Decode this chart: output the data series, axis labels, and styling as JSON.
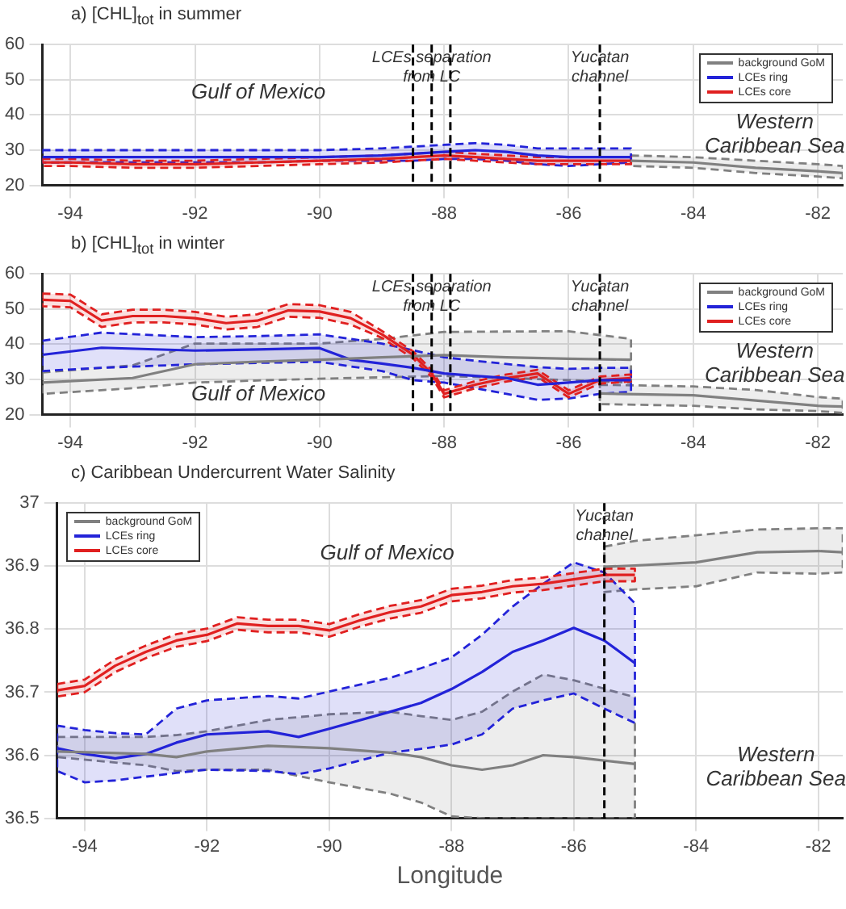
{
  "chart_data": [
    {
      "type": "line",
      "title": "a)  [CHL]$_{tot}$ in summer",
      "xlim": [
        -94.45,
        -81.6
      ],
      "xticks": [
        -94,
        -92,
        -90,
        -88,
        -86,
        -84,
        -82
      ],
      "ylim": [
        20,
        60
      ],
      "yticks": [
        20,
        30,
        40,
        50,
        60
      ],
      "grid": true,
      "legend": "top right",
      "marker": "none",
      "line_style": "solid",
      "ref_lines": [
        {
          "axis": "x",
          "value": -88.5,
          "label": null,
          "line_style": "dashed",
          "color": "#000000"
        },
        {
          "axis": "x",
          "value": -88.2,
          "label": "LCEs separation from LC",
          "line_style": "dashed",
          "color": "#000000"
        },
        {
          "axis": "x",
          "value": -87.9,
          "label": null,
          "line_style": "dashed",
          "color": "#000000"
        },
        {
          "axis": "x",
          "value": -85.5,
          "label": "Yucatan channel",
          "line_style": "dashed",
          "color": "#000000"
        }
      ],
      "annotations": [
        "Gulf of Mexico",
        "Western Caribbean Sea"
      ],
      "series": [
        {
          "name": "background GoM",
          "color": "#808080",
          "x": [
            -85,
            -84,
            -83,
            -82,
            -81.6
          ],
          "values": [
            27,
            26.5,
            25,
            24,
            23.5
          ],
          "lower": [
            25.5,
            25,
            23.5,
            22.5,
            22
          ],
          "upper": [
            28.5,
            28,
            27,
            26,
            25.5
          ]
        },
        {
          "name": "LCEs ring",
          "color": "#2323d8",
          "x": [
            -94.45,
            -94,
            -93,
            -92,
            -91,
            -90,
            -89,
            -88.5,
            -88,
            -87.5,
            -87,
            -86.5,
            -86,
            -85.5,
            -85
          ],
          "values": [
            28,
            28,
            28,
            28,
            28,
            28,
            28.5,
            29,
            29.5,
            30,
            29.5,
            28.5,
            28,
            28,
            28
          ],
          "lower": [
            26.5,
            26.5,
            26.5,
            26.5,
            26.5,
            27,
            27,
            27,
            27.5,
            27.5,
            27,
            26,
            25.5,
            26,
            26.5
          ],
          "upper": [
            30,
            30,
            30,
            30,
            30,
            30,
            30.5,
            31,
            31.5,
            32,
            31.5,
            30.5,
            30.5,
            30.5,
            30.5
          ]
        },
        {
          "name": "LCEs core",
          "color": "#e02020",
          "x": [
            -94.45,
            -94,
            -93,
            -92,
            -91,
            -90,
            -89,
            -88.5,
            -88,
            -87.5,
            -87,
            -86.5,
            -86,
            -85.5,
            -85
          ],
          "values": [
            26.5,
            26.5,
            26,
            26,
            26.5,
            27,
            27.5,
            28,
            28.5,
            28,
            27.5,
            27,
            27,
            27,
            27
          ],
          "lower": [
            25.5,
            25.5,
            25,
            25,
            25.5,
            26,
            26.5,
            27,
            27.5,
            27,
            26.5,
            26,
            26,
            26,
            26
          ],
          "upper": [
            27.5,
            27.5,
            27,
            27,
            27.5,
            28,
            28.5,
            29,
            29.5,
            29,
            28.5,
            28,
            28,
            28,
            28
          ]
        }
      ]
    },
    {
      "type": "line",
      "title": "b)  [CHL]$_{tot}$ in winter",
      "xlim": [
        -94.45,
        -81.6
      ],
      "xticks": [
        -94,
        -92,
        -90,
        -88,
        -86,
        -84,
        -82
      ],
      "ylim": [
        20,
        60
      ],
      "yticks": [
        20,
        30,
        40,
        50,
        60
      ],
      "grid": true,
      "legend": "top right",
      "marker": "none",
      "line_style": "solid",
      "ref_lines": [
        {
          "axis": "x",
          "value": -88.5,
          "label": null,
          "line_style": "dashed",
          "color": "#000000"
        },
        {
          "axis": "x",
          "value": -88.2,
          "label": "LCEs separation from LC",
          "line_style": "dashed",
          "color": "#000000"
        },
        {
          "axis": "x",
          "value": -87.9,
          "label": null,
          "line_style": "dashed",
          "color": "#000000"
        },
        {
          "axis": "x",
          "value": -85.5,
          "label": "Yucatan channel",
          "line_style": "dashed",
          "color": "#000000"
        }
      ],
      "annotations": [
        "Gulf of Mexico",
        "Western Caribbean Sea"
      ],
      "series": [
        {
          "name": "background GoM",
          "color": "#808080",
          "x": [
            -94.45,
            -93,
            -92,
            -91,
            -90,
            -89,
            -88,
            -87,
            -86,
            -85
          ],
          "values": [
            29.1,
            30.4,
            34.3,
            35,
            35.6,
            36.3,
            36.9,
            36.3,
            35.9,
            35.6
          ],
          "lower": [
            25.9,
            27.5,
            29.1,
            29.7,
            30.2,
            30.6,
            31,
            30.4,
            29.8,
            29.1
          ],
          "upper": [
            32,
            34,
            40.2,
            40.2,
            40.2,
            41.5,
            43.5,
            43.6,
            43.7,
            41.5
          ]
        },
        {
          "color": "#808080",
          "x": [
            -85.5,
            -84,
            -83,
            -82,
            -81.6
          ],
          "values": [
            26,
            25.5,
            24,
            22.5,
            22.3
          ],
          "lower": [
            23,
            22.5,
            21.5,
            21,
            20.5
          ],
          "upper": [
            28.5,
            28,
            27,
            25,
            24.5
          ]
        },
        {
          "name": "LCEs ring",
          "color": "#2323d8",
          "x": [
            -94.45,
            -93.5,
            -92,
            -91,
            -90,
            -89.5,
            -89,
            -88.5,
            -88,
            -87.5,
            -87,
            -86.5,
            -86,
            -85.5,
            -85
          ],
          "values": [
            37,
            39,
            38.2,
            38.5,
            38.9,
            35.6,
            34.5,
            33.3,
            31.7,
            31,
            30.4,
            28.5,
            29.1,
            29.8,
            29.8
          ],
          "lower": [
            32.4,
            33.3,
            34.3,
            34.7,
            35,
            33.7,
            32.4,
            29.8,
            29.1,
            27.5,
            25.9,
            24.2,
            24.6,
            25.9,
            26.5
          ],
          "upper": [
            41,
            43.3,
            42,
            42.3,
            42.8,
            41.5,
            40.2,
            38.3,
            36.3,
            35.3,
            34.4,
            33.5,
            33,
            33.3,
            33.3
          ]
        },
        {
          "name": "LCEs core",
          "color": "#e02020",
          "x": [
            -94.45,
            -94,
            -93.5,
            -93,
            -92.5,
            -92,
            -91.5,
            -91,
            -90.5,
            -90,
            -89.5,
            -89,
            -88.5,
            -88.2,
            -88,
            -87.5,
            -87,
            -86.5,
            -86,
            -85.5,
            -85
          ],
          "values": [
            52.6,
            52.3,
            46.7,
            48,
            48,
            47.4,
            46,
            46.7,
            49.6,
            49.3,
            47.4,
            42.8,
            37,
            31.7,
            25.9,
            28.5,
            30.4,
            31.7,
            25.9,
            29.8,
            30.4
          ],
          "lower": [
            50.8,
            50.5,
            44.9,
            46.2,
            46.2,
            45.6,
            44.2,
            44.9,
            47.8,
            47.5,
            45.6,
            41.8,
            36,
            30.7,
            24.9,
            27.5,
            29.4,
            30.7,
            24.9,
            28.8,
            29.4
          ],
          "upper": [
            54.4,
            54.1,
            48.5,
            49.8,
            49.8,
            49.2,
            47.8,
            48.5,
            51.4,
            51.1,
            49.2,
            43.8,
            38,
            32.7,
            26.9,
            29.5,
            31.4,
            32.7,
            26.9,
            30.8,
            31.4
          ]
        }
      ]
    },
    {
      "type": "line",
      "title": "c)  Caribbean Undercurrent Water Salinity",
      "xlabel": "Longitude",
      "xlim": [
        -94.45,
        -81.6
      ],
      "xticks": [
        -94,
        -92,
        -90,
        -88,
        -86,
        -84,
        -82
      ],
      "ylim": [
        36.5,
        37
      ],
      "yticks": [
        36.5,
        36.6,
        36.7,
        36.8,
        36.9,
        37
      ],
      "grid": true,
      "legend": "top left",
      "marker": "none",
      "line_style": "solid",
      "ref_lines": [
        {
          "axis": "x",
          "value": -85.5,
          "label": "Yucatan channel",
          "line_style": "dashed",
          "color": "#000000"
        }
      ],
      "annotations": [
        "Gulf of Mexico",
        "Western Caribbean Sea"
      ],
      "series": [
        {
          "name": "background GoM",
          "color": "#808080",
          "x": [
            -94.45,
            -93,
            -92.5,
            -92,
            -91,
            -90,
            -89,
            -88.5,
            -88,
            -87.5,
            -87,
            -86.5,
            -86,
            -85
          ],
          "values": [
            36.606,
            36.602,
            36.597,
            36.606,
            36.615,
            36.611,
            36.604,
            36.597,
            36.584,
            36.577,
            36.584,
            36.6,
            36.597,
            36.586
          ],
          "lower": [
            36.597,
            36.584,
            36.575,
            36.577,
            36.577,
            36.557,
            36.539,
            36.525,
            36.503,
            36.5,
            36.5,
            36.5,
            36.5,
            36.5
          ],
          "upper": [
            36.629,
            36.629,
            36.632,
            36.638,
            36.656,
            36.665,
            36.669,
            36.662,
            36.656,
            36.669,
            36.701,
            36.728,
            36.719,
            36.692
          ]
        },
        {
          "color": "#808080",
          "x": [
            -85.5,
            -85,
            -84,
            -83,
            -82,
            -81.6
          ],
          "values": [
            36.899,
            36.901,
            36.906,
            36.922,
            36.924,
            36.922
          ],
          "lower": [
            36.859,
            36.863,
            36.868,
            36.89,
            36.888,
            36.89
          ],
          "upper": [
            36.931,
            36.94,
            36.949,
            36.958,
            36.96,
            36.96
          ]
        },
        {
          "name": "LCEs ring",
          "color": "#2323d8",
          "x": [
            -94.45,
            -94,
            -93.5,
            -93,
            -92.5,
            -92,
            -91,
            -90.5,
            -90,
            -89,
            -88.5,
            -88,
            -87.5,
            -87,
            -86.5,
            -86,
            -85.5,
            -85
          ],
          "values": [
            36.611,
            36.602,
            36.595,
            36.602,
            36.62,
            36.633,
            36.638,
            36.629,
            36.642,
            36.669,
            36.683,
            36.705,
            36.732,
            36.764,
            36.782,
            36.802,
            36.782,
            36.746
          ],
          "lower": [
            36.575,
            36.557,
            36.56,
            36.566,
            36.572,
            36.577,
            36.575,
            36.57,
            36.579,
            36.604,
            36.61,
            36.617,
            36.633,
            36.674,
            36.687,
            36.698,
            36.674,
            36.651
          ],
          "upper": [
            36.647,
            36.64,
            36.635,
            36.633,
            36.674,
            36.687,
            36.694,
            36.69,
            36.701,
            36.723,
            36.738,
            36.755,
            36.791,
            36.836,
            36.872,
            36.906,
            36.89,
            36.841
          ]
        },
        {
          "name": "LCEs core",
          "color": "#e02020",
          "x": [
            -94.45,
            -94,
            -93.5,
            -93,
            -92.5,
            -92,
            -91.5,
            -91,
            -90.5,
            -90,
            -89.5,
            -89,
            -88.5,
            -88,
            -87.5,
            -87,
            -86.5,
            -86,
            -85.5,
            -85
          ],
          "values": [
            36.703,
            36.71,
            36.742,
            36.764,
            36.782,
            36.791,
            36.809,
            36.805,
            36.805,
            36.798,
            36.814,
            36.827,
            36.836,
            36.854,
            36.859,
            36.868,
            36.872,
            36.879,
            36.886,
            36.886
          ],
          "lower": [
            36.693,
            36.7,
            36.732,
            36.754,
            36.772,
            36.781,
            36.799,
            36.795,
            36.795,
            36.788,
            36.804,
            36.817,
            36.826,
            36.844,
            36.849,
            36.858,
            36.862,
            36.869,
            36.876,
            36.876
          ],
          "upper": [
            36.713,
            36.72,
            36.752,
            36.774,
            36.792,
            36.801,
            36.819,
            36.815,
            36.815,
            36.808,
            36.824,
            36.837,
            36.846,
            36.864,
            36.869,
            36.878,
            36.882,
            36.889,
            36.896,
            36.896
          ]
        }
      ]
    }
  ]
}
